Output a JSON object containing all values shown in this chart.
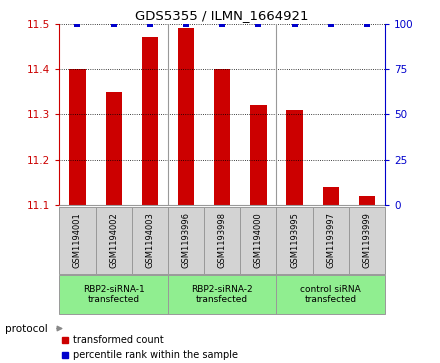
{
  "title": "GDS5355 / ILMN_1664921",
  "samples": [
    "GSM1194001",
    "GSM1194002",
    "GSM1194003",
    "GSM1193996",
    "GSM1193998",
    "GSM1194000",
    "GSM1193995",
    "GSM1193997",
    "GSM1193999"
  ],
  "bar_values": [
    11.4,
    11.35,
    11.47,
    11.49,
    11.4,
    11.32,
    11.31,
    11.14,
    11.12
  ],
  "percentile_values": [
    100,
    100,
    100,
    100,
    100,
    100,
    100,
    100,
    100
  ],
  "ylim_left": [
    11.1,
    11.5
  ],
  "ylim_right": [
    0,
    100
  ],
  "yticks_left": [
    11.1,
    11.2,
    11.3,
    11.4,
    11.5
  ],
  "yticks_right": [
    0,
    25,
    50,
    75,
    100
  ],
  "bar_color": "#cc0000",
  "dot_color": "#0000cc",
  "groups": [
    {
      "label": "RBP2-siRNA-1\ntransfected",
      "start": 0,
      "end": 3,
      "color": "#90ee90"
    },
    {
      "label": "RBP2-siRNA-2\ntransfected",
      "start": 3,
      "end": 6,
      "color": "#90ee90"
    },
    {
      "label": "control siRNA\ntransfected",
      "start": 6,
      "end": 9,
      "color": "#90ee90"
    }
  ],
  "protocol_label": "protocol",
  "legend_items": [
    {
      "color": "#cc0000",
      "label": "transformed count"
    },
    {
      "color": "#0000cc",
      "label": "percentile rank within the sample"
    }
  ],
  "background_color": "#ffffff",
  "sample_box_color": "#d3d3d3",
  "group_dividers": [
    2.5,
    5.5
  ],
  "bar_width": 0.45
}
